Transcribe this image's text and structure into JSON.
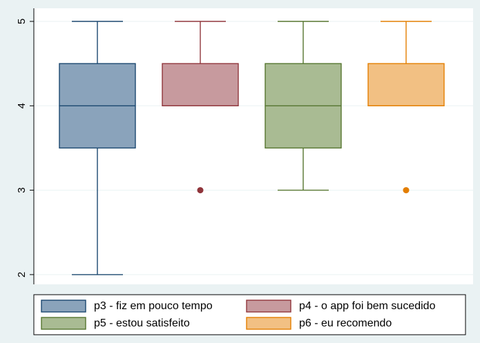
{
  "chart_data": {
    "type": "box",
    "title": "",
    "xlabel": "",
    "ylabel": "",
    "ylim": [
      1.88,
      5.15
    ],
    "yticks": [
      2,
      3,
      4,
      5
    ],
    "grid": true,
    "legend_position": "bottom",
    "series": [
      {
        "name": "p3 - fiz em pouco tempo",
        "color": "#8aa3bb",
        "edge": "#1a476f",
        "whisker_low": 2,
        "q1": 3.5,
        "median": 4,
        "q3": 4.5,
        "whisker_high": 5,
        "outliers": []
      },
      {
        "name": "p4 - o app foi bem sucedido",
        "color": "#c79a9e",
        "edge": "#90353b",
        "whisker_low": 4,
        "q1": 4,
        "median": 4,
        "q3": 4.5,
        "whisker_high": 5,
        "outliers": [
          3
        ]
      },
      {
        "name": "p5 - estou satisfeito",
        "color": "#a9bb93",
        "edge": "#55752f",
        "whisker_low": 3,
        "q1": 3.5,
        "median": 4,
        "q3": 4.5,
        "whisker_high": 5,
        "outliers": []
      },
      {
        "name": "p6 - eu recomendo",
        "color": "#f2c083",
        "edge": "#e37e00",
        "whisker_low": 4,
        "q1": 4,
        "median": 4,
        "q3": 4.5,
        "whisker_high": 5,
        "outliers": [
          3
        ]
      }
    ]
  }
}
